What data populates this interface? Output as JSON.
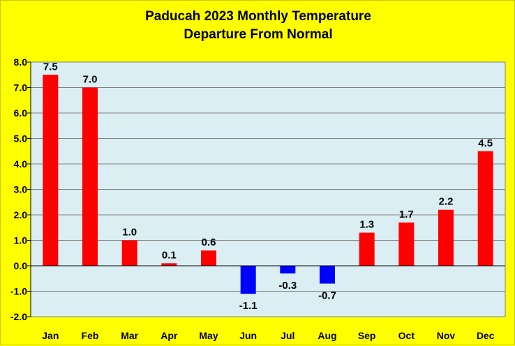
{
  "chart_data": {
    "type": "bar",
    "title_line1": "Paducah 2023 Monthly Temperature",
    "title_line2": "Departure From Normal",
    "categories": [
      "Jan",
      "Feb",
      "Mar",
      "Apr",
      "May",
      "Jun",
      "Jul",
      "Aug",
      "Sep",
      "Oct",
      "Nov",
      "Dec"
    ],
    "values": [
      7.5,
      7.0,
      1.0,
      0.1,
      0.6,
      -1.1,
      -0.3,
      -0.7,
      1.3,
      1.7,
      2.2,
      4.5
    ],
    "data_labels": [
      "7.5",
      "7.0",
      "1.0",
      "0.1",
      "0.6",
      "-1.1",
      "-0.3",
      "-0.7",
      "1.3",
      "1.7",
      "2.2",
      "4.5"
    ],
    "xlabel": "",
    "ylabel": "",
    "ylim": [
      -2.0,
      8.0
    ],
    "yticks": [
      "-2.0",
      "-1.0",
      "0.0",
      "1.0",
      "2.0",
      "3.0",
      "4.0",
      "5.0",
      "6.0",
      "7.0",
      "8.0"
    ],
    "grid": true,
    "colors": {
      "positive": "#ff0000",
      "negative": "#0000ff",
      "plot_background": "#daeef3",
      "page_background": "#ffff00",
      "gridline": "#808080"
    }
  }
}
